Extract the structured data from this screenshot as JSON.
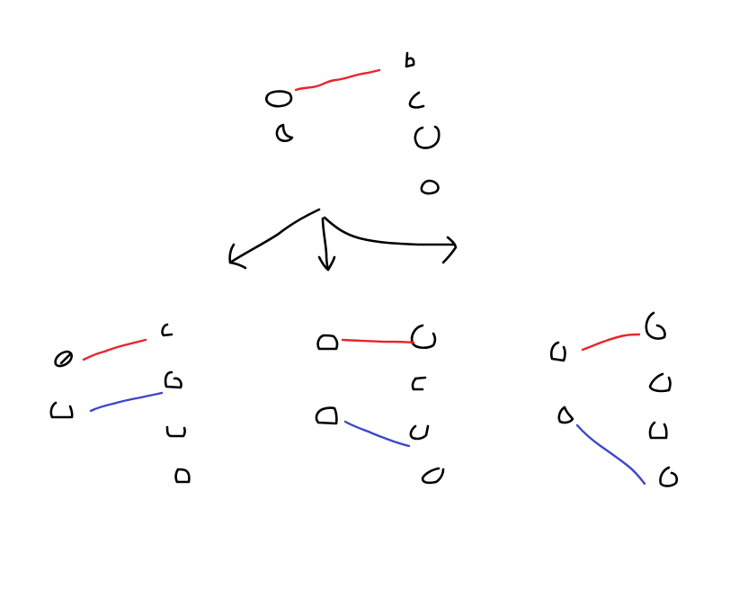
{
  "colors": {
    "background": "#ffffff",
    "node": "#000000",
    "arrow": "#000000",
    "edge_first": "#e8252a",
    "edge_second": "#3d47c9"
  },
  "diagram": {
    "source": {
      "left_nodes": 2,
      "right_nodes": 4,
      "edges": [
        {
          "from_left": 1,
          "to_right": 1,
          "color": "edge_first"
        }
      ]
    },
    "arrows": [
      "to-left-result",
      "to-middle-result",
      "to-right-result"
    ],
    "results": [
      {
        "id": "left",
        "left_nodes": 2,
        "right_nodes": 4,
        "edges": [
          {
            "from_left": 1,
            "to_right": 1,
            "color": "edge_first"
          },
          {
            "from_left": 2,
            "to_right": 2,
            "color": "edge_second"
          }
        ]
      },
      {
        "id": "middle",
        "left_nodes": 2,
        "right_nodes": 4,
        "edges": [
          {
            "from_left": 1,
            "to_right": 1,
            "color": "edge_first"
          },
          {
            "from_left": 2,
            "to_right": 3,
            "color": "edge_second"
          }
        ]
      },
      {
        "id": "right",
        "left_nodes": 2,
        "right_nodes": 4,
        "edges": [
          {
            "from_left": 1,
            "to_right": 1,
            "color": "edge_first"
          },
          {
            "from_left": 2,
            "to_right": 4,
            "color": "edge_second"
          }
        ]
      }
    ]
  }
}
